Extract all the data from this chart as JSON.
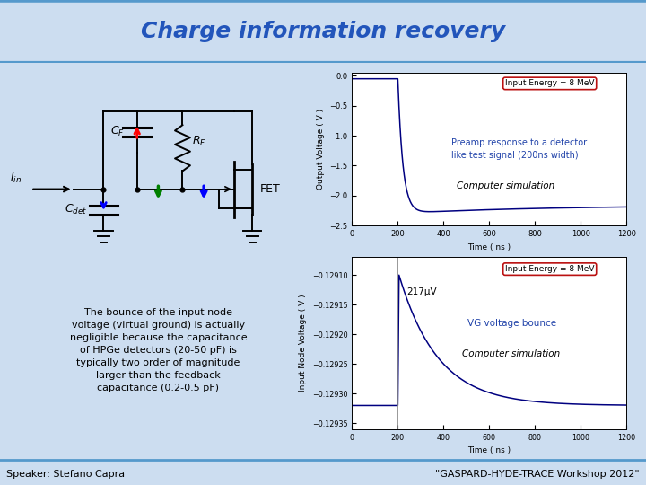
{
  "title": "Charge information recovery",
  "title_color": "#2255bb",
  "bg_color": "#ccddf0",
  "slide_bg": "#ccddf0",
  "plot1_ylabel": "Output Voltage ( V )",
  "plot1_xlabel": "Time ( ns )",
  "plot1_xlim": [
    0,
    1200
  ],
  "plot1_ylim": [
    -2.5,
    0.05
  ],
  "plot1_yticks": [
    0,
    -0.5,
    -1.0,
    -1.5,
    -2.0,
    -2.5
  ],
  "plot1_xticks": [
    0,
    200,
    400,
    600,
    800,
    1000,
    1200
  ],
  "plot1_annotation1": "Preamp response to a detector\nlike test signal (200ns width)",
  "plot1_annotation2": "Computer simulation",
  "plot1_energy_label": "Input Energy = 8 MeV",
  "plot2_ylabel": "Input Node Voltage ( V )",
  "plot2_xlabel": "Time ( ns )",
  "plot2_xlim": [
    0,
    1200
  ],
  "plot2_ylim": [
    -0.12936,
    -0.12907
  ],
  "plot2_yticks": [
    -0.1291,
    -0.12915,
    -0.1292,
    -0.12925,
    -0.1293,
    -0.12935
  ],
  "plot2_xticks": [
    0,
    200,
    400,
    600,
    800,
    1000,
    1200
  ],
  "plot2_annotation1": "VG voltage bounce",
  "plot2_annotation2": "Computer simulation",
  "plot2_energy_label": "Input Energy = 8 MeV",
  "plot2_bounce_label": "217μV",
  "circuit_text": "The bounce of the input node\nvoltage (virtual ground) is actually\nnegligible because the capacitance\nof HPGe detectors (20-50 pF) is\ntypically two order of magnitude\nlarger than the feedback\ncapacitance (0.2-0.5 pF)",
  "speaker_text": "Speaker: Stefano Capra",
  "workshop_text": "\"GASPARD-HYDE-TRACE Workshop 2012\"",
  "line_color": "#000080",
  "annotation_color": "#2244aa"
}
